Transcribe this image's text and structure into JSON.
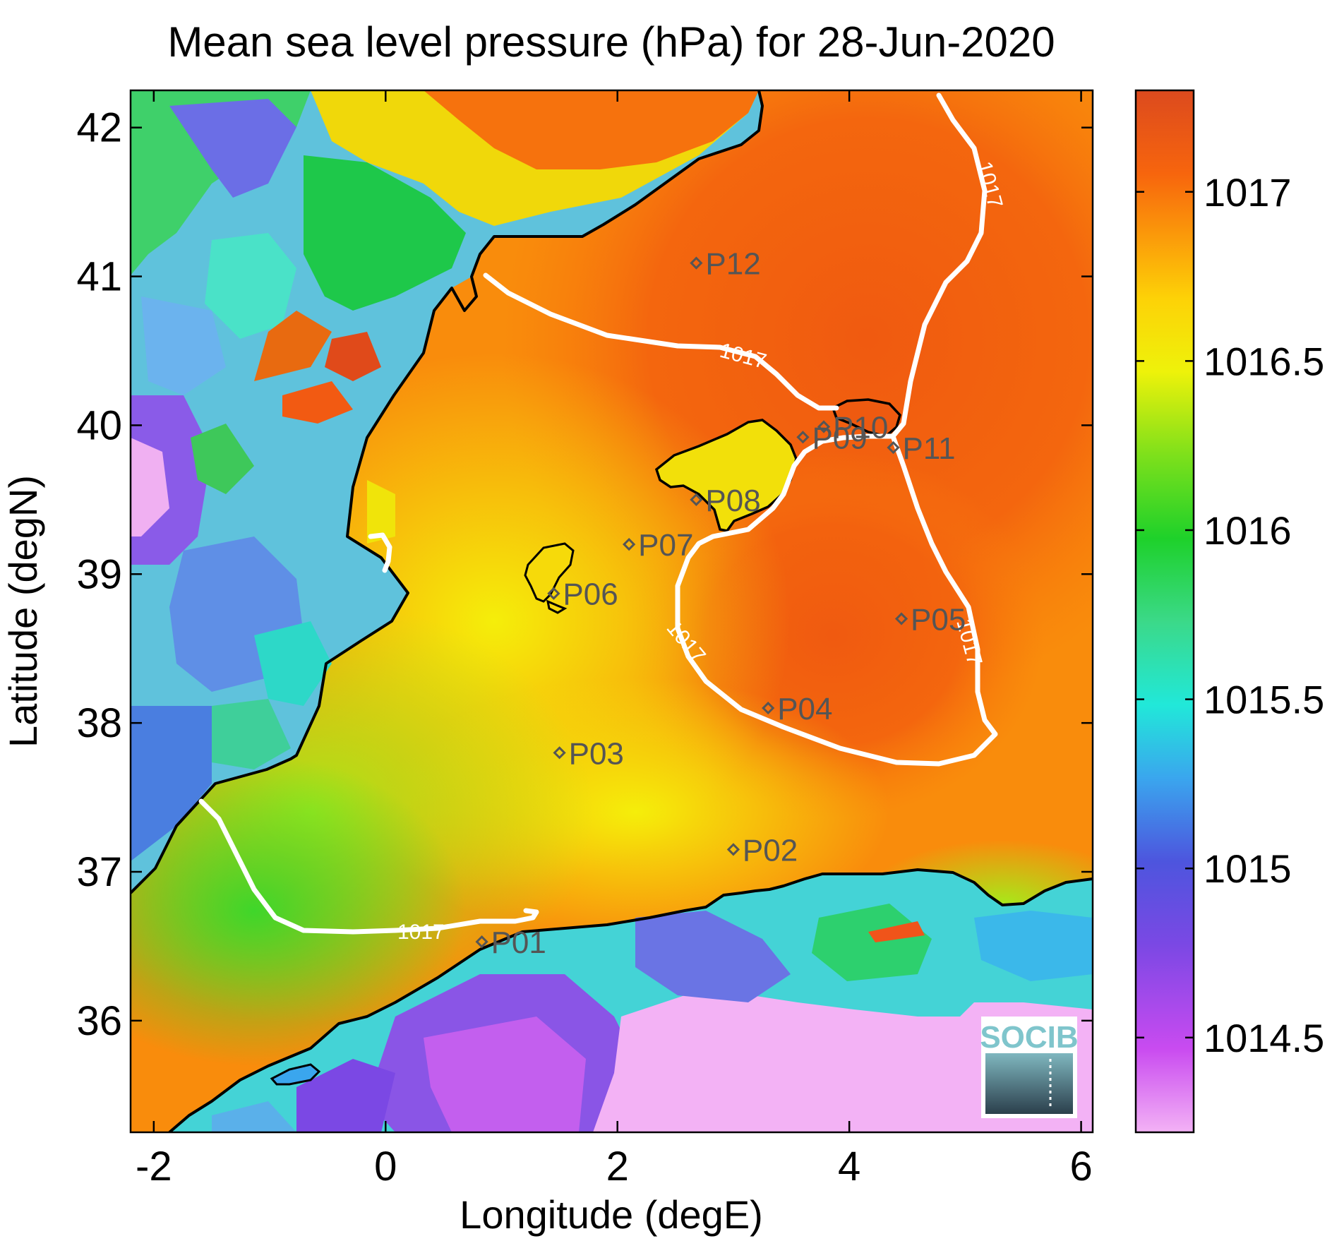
{
  "title": "Mean sea level pressure (hPa) for 28-Jun-2020",
  "x_axis": {
    "label": "Longitude (degE)",
    "ticks": [
      "-2",
      "0",
      "2",
      "4",
      "6"
    ],
    "range": [
      -2.2,
      6.1
    ]
  },
  "y_axis": {
    "label": "Latitude (degN)",
    "ticks": [
      "36",
      "37",
      "38",
      "39",
      "40",
      "41",
      "42"
    ],
    "range": [
      35.25,
      42.25
    ]
  },
  "colorbar": {
    "ticks": [
      "1014.5",
      "1015",
      "1015.5",
      "1016",
      "1016.5",
      "1017"
    ],
    "range": [
      1014.22,
      1017.3
    ],
    "colors": [
      "#f3b2f5",
      "#c94bf0",
      "#7b48e4",
      "#4d55de",
      "#3aa6ee",
      "#21e8d9",
      "#3bd989",
      "#1ed12a",
      "#7ee01b",
      "#eef20a",
      "#fdd207",
      "#fb9a0a",
      "#f7650d",
      "#dc4a1e"
    ]
  },
  "contour": {
    "level": "1017",
    "color": "#ffffff"
  },
  "stations": [
    {
      "name": "P01",
      "lon": 0.83,
      "lat": 36.53
    },
    {
      "name": "P02",
      "lon": 3.0,
      "lat": 37.15
    },
    {
      "name": "P03",
      "lon": 1.5,
      "lat": 37.8
    },
    {
      "name": "P04",
      "lon": 3.3,
      "lat": 38.1
    },
    {
      "name": "P05",
      "lon": 4.45,
      "lat": 38.7
    },
    {
      "name": "P06",
      "lon": 1.45,
      "lat": 38.87
    },
    {
      "name": "P07",
      "lon": 2.1,
      "lat": 39.2
    },
    {
      "name": "P08",
      "lon": 2.68,
      "lat": 39.5
    },
    {
      "name": "P09",
      "lon": 3.6,
      "lat": 39.92
    },
    {
      "name": "P10",
      "lon": 3.78,
      "lat": 39.99
    },
    {
      "name": "P11",
      "lon": 4.38,
      "lat": 39.85
    },
    {
      "name": "P12",
      "lon": 2.68,
      "lat": 41.09
    }
  ],
  "logo": {
    "text": "SOCIB"
  }
}
